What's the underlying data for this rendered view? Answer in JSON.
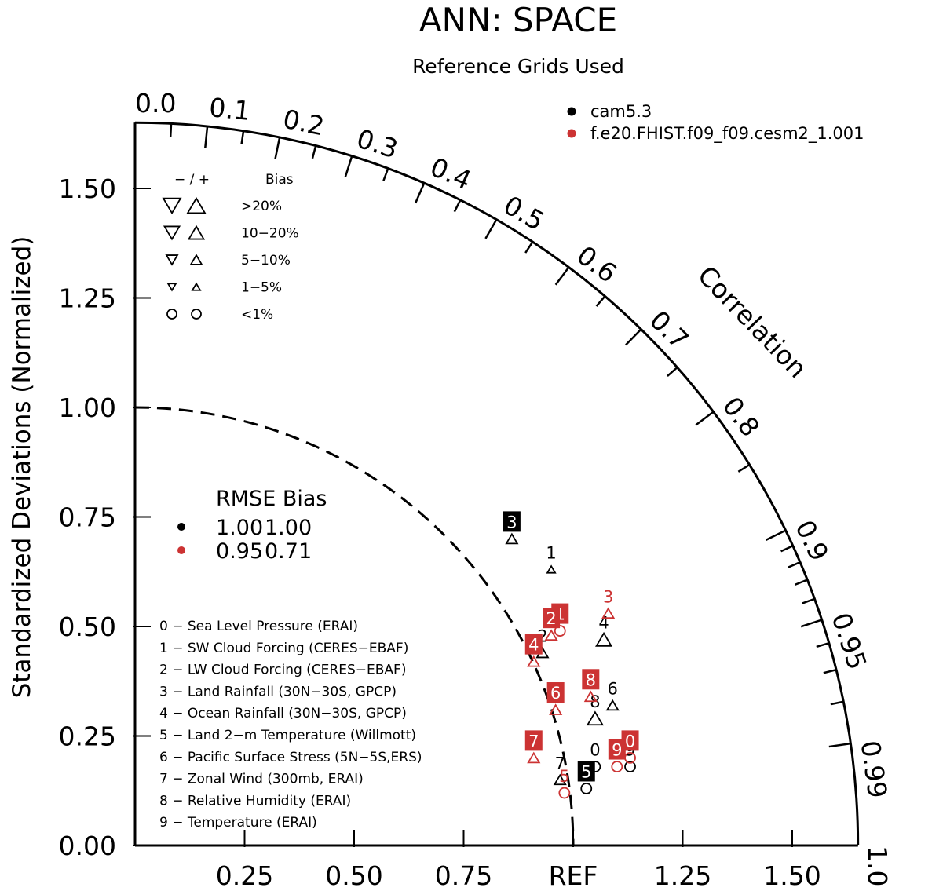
{
  "chart_data": {
    "type": "taylor",
    "title": "ANN: SPACE",
    "subtitle": "Reference Grids Used",
    "ylabel": "Standardized Deviations (Normalized)",
    "corr_label": "Correlation",
    "std_range": [
      0,
      1.65
    ],
    "ref_std": 1.0,
    "y_ticks": [
      {
        "value": 0.0,
        "label": "0.00"
      },
      {
        "value": 0.25,
        "label": "0.25"
      },
      {
        "value": 0.5,
        "label": "0.50"
      },
      {
        "value": 0.75,
        "label": "0.75"
      },
      {
        "value": 1.0,
        "label": "1.00"
      },
      {
        "value": 1.25,
        "label": "1.25"
      },
      {
        "value": 1.5,
        "label": "1.50"
      }
    ],
    "x_ticks": [
      {
        "value": 0.25,
        "label": "0.25"
      },
      {
        "value": 0.5,
        "label": "0.50"
      },
      {
        "value": 0.75,
        "label": "0.75"
      },
      {
        "value": 1.0,
        "label": "REF"
      },
      {
        "value": 1.25,
        "label": "1.25"
      },
      {
        "value": 1.5,
        "label": "1.50"
      }
    ],
    "corr_ticks": [
      {
        "value": 0.0,
        "label": "0.0"
      },
      {
        "value": 0.1,
        "label": "0.1"
      },
      {
        "value": 0.2,
        "label": "0.2"
      },
      {
        "value": 0.3,
        "label": "0.3"
      },
      {
        "value": 0.4,
        "label": "0.4"
      },
      {
        "value": 0.5,
        "label": "0.5"
      },
      {
        "value": 0.6,
        "label": "0.6"
      },
      {
        "value": 0.7,
        "label": "0.7"
      },
      {
        "value": 0.8,
        "label": "0.8"
      },
      {
        "value": 0.9,
        "label": "0.9"
      },
      {
        "value": 0.95,
        "label": "0.95"
      },
      {
        "value": 0.99,
        "label": "0.99"
      },
      {
        "value": 1.0,
        "label": "1.0"
      }
    ],
    "corr_minor_ticks": [
      0.05,
      0.15,
      0.25,
      0.35,
      0.45,
      0.55,
      0.65,
      0.75,
      0.85,
      0.91,
      0.92,
      0.93,
      0.94,
      0.96,
      0.97,
      0.98
    ],
    "series": [
      {
        "name": "cam5.3",
        "color": "#000000",
        "points": [
          {
            "id": "0",
            "x": 1.05,
            "y": 0.18,
            "shape": "circle",
            "size": "lg",
            "boxed": false
          },
          {
            "id": "1",
            "x": 0.95,
            "y": 0.63,
            "shape": "up",
            "size": "sm",
            "boxed": false
          },
          {
            "id": "2",
            "x": 0.93,
            "y": 0.44,
            "shape": "up",
            "size": "md",
            "boxed": false
          },
          {
            "id": "3",
            "x": 0.86,
            "y": 0.7,
            "shape": "up",
            "size": "md",
            "boxed": true
          },
          {
            "id": "4",
            "x": 1.07,
            "y": 0.47,
            "shape": "up",
            "size": "lg",
            "boxed": false
          },
          {
            "id": "5",
            "x": 1.03,
            "y": 0.13,
            "shape": "circle",
            "size": "lg",
            "boxed": true
          },
          {
            "id": "6",
            "x": 1.09,
            "y": 0.32,
            "shape": "up",
            "size": "md",
            "boxed": false
          },
          {
            "id": "7",
            "x": 0.97,
            "y": 0.15,
            "shape": "up",
            "size": "md",
            "boxed": false
          },
          {
            "id": "8",
            "x": 1.05,
            "y": 0.29,
            "shape": "up",
            "size": "lg",
            "boxed": false
          },
          {
            "id": "9",
            "x": 1.13,
            "y": 0.18,
            "shape": "circle",
            "size": "lg",
            "boxed": false
          }
        ]
      },
      {
        "name": "f.e20.FHIST.f09_f09.cesm2_1.001",
        "color": "#cc3333",
        "points": [
          {
            "id": "0",
            "x": 1.13,
            "y": 0.2,
            "shape": "circle",
            "size": "lg",
            "boxed": true
          },
          {
            "id": "1",
            "x": 0.97,
            "y": 0.49,
            "shape": "circle",
            "size": "lg",
            "boxed": true
          },
          {
            "id": "2",
            "x": 0.95,
            "y": 0.48,
            "shape": "up",
            "size": "md",
            "boxed": true
          },
          {
            "id": "3",
            "x": 1.08,
            "y": 0.53,
            "shape": "up",
            "size": "md",
            "boxed": false
          },
          {
            "id": "4",
            "x": 0.91,
            "y": 0.42,
            "shape": "up",
            "size": "md",
            "boxed": true
          },
          {
            "id": "5",
            "x": 0.98,
            "y": 0.12,
            "shape": "circle",
            "size": "lg",
            "boxed": false
          },
          {
            "id": "6",
            "x": 0.96,
            "y": 0.31,
            "shape": "up",
            "size": "md",
            "boxed": true
          },
          {
            "id": "7",
            "x": 0.91,
            "y": 0.2,
            "shape": "up",
            "size": "md",
            "boxed": true
          },
          {
            "id": "8",
            "x": 1.04,
            "y": 0.34,
            "shape": "up",
            "size": "md",
            "boxed": true
          },
          {
            "id": "9",
            "x": 1.1,
            "y": 0.18,
            "shape": "circle",
            "size": "lg",
            "boxed": true
          }
        ]
      }
    ],
    "bias_key": {
      "header_sign": "− / +",
      "header_label": "Bias",
      "rows": [
        {
          "label": ">20%",
          "shape": "triangle",
          "size": "xl"
        },
        {
          "label": "10−20%",
          "shape": "triangle",
          "size": "lg"
        },
        {
          "label": "5−10%",
          "shape": "triangle",
          "size": "md"
        },
        {
          "label": "1−5%",
          "shape": "triangle",
          "size": "sm"
        },
        {
          "label": "<1%",
          "shape": "circle",
          "size": "md"
        }
      ]
    },
    "rmse_table": {
      "header": "RMSE Bias",
      "rows": [
        {
          "color": "#000000",
          "rmse": "1.00",
          "bias": "1.00"
        },
        {
          "color": "#cc3333",
          "rmse": "0.95",
          "bias": "0.71"
        }
      ]
    },
    "variables": [
      "0 − Sea Level Pressure (ERAI)",
      "1 − SW Cloud Forcing (CERES−EBAF)",
      "2 − LW Cloud Forcing (CERES−EBAF)",
      "3 − Land Rainfall (30N−30S, GPCP)",
      "4 − Ocean Rainfall (30N−30S, GPCP)",
      "5 − Land 2−m Temperature (Willmott)",
      "6 − Pacific Surface Stress (5N−5S,ERS)",
      "7 − Zonal Wind (300mb, ERAI)",
      "8 − Relative Humidity (ERAI)",
      "9 − Temperature (ERAI)"
    ]
  }
}
